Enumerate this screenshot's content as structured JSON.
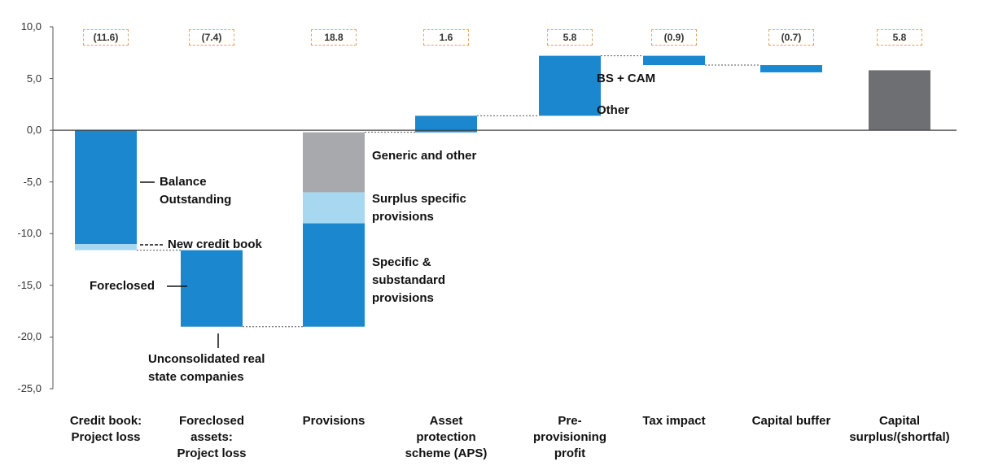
{
  "chart_data": {
    "type": "waterfall",
    "ylim": [
      -25,
      10
    ],
    "yticks": [
      {
        "value": 10,
        "label": "10,0"
      },
      {
        "value": 5,
        "label": "5,0"
      },
      {
        "value": 0,
        "label": "0,0"
      },
      {
        "value": -5,
        "label": "-5,0"
      },
      {
        "value": -10,
        "label": "-10,0"
      },
      {
        "value": -15,
        "label": "-15,0"
      },
      {
        "value": -20,
        "label": "-20,0"
      },
      {
        "value": -25,
        "label": "-25,0"
      }
    ],
    "color": "#1b87cf",
    "total_color": "#6d6f72",
    "categories": [
      "Credit book:\nProject loss",
      "Foreclosed\nassets:\nProject loss",
      "Provisions",
      "Asset\nprotection\nscheme (APS)",
      "Pre-\nprovisioning\nprofit",
      "Tax impact",
      "Capital buffer",
      "Capital\nsurplus/(shortfal)"
    ],
    "values": [
      -11.6,
      -7.4,
      18.8,
      1.6,
      5.8,
      -0.9,
      -0.7,
      5.8
    ],
    "value_labels": [
      "(11.6)",
      "(7.4)",
      "18.8",
      "1.6",
      "5.8",
      "(0.9)",
      "(0.7)",
      "5.8"
    ],
    "kinds": [
      "step",
      "step",
      "step",
      "step",
      "step",
      "step",
      "step",
      "total"
    ],
    "segments": [
      [
        {
          "name": "Balance\nOutstanding",
          "value": -11.0,
          "color": "#1b87cf"
        },
        {
          "name": "New credit book",
          "value": -0.6,
          "color": "#a8d8f0"
        }
      ],
      null,
      [
        {
          "name": "Specific &\nsubstandard\nprovisions",
          "value": 10.0,
          "color": "#1b87cf"
        },
        {
          "name": "Surplus specific\nprovisions",
          "value": 3.0,
          "color": "#a8d8f0"
        },
        {
          "name": "Generic and other",
          "value": 5.8,
          "color": "#a7a9ac"
        }
      ],
      null,
      null,
      null,
      null,
      null
    ],
    "annotations": [
      "Foreclosed",
      "Unconsolidated real\nstate companies",
      "BS + CAM",
      "Other"
    ]
  }
}
